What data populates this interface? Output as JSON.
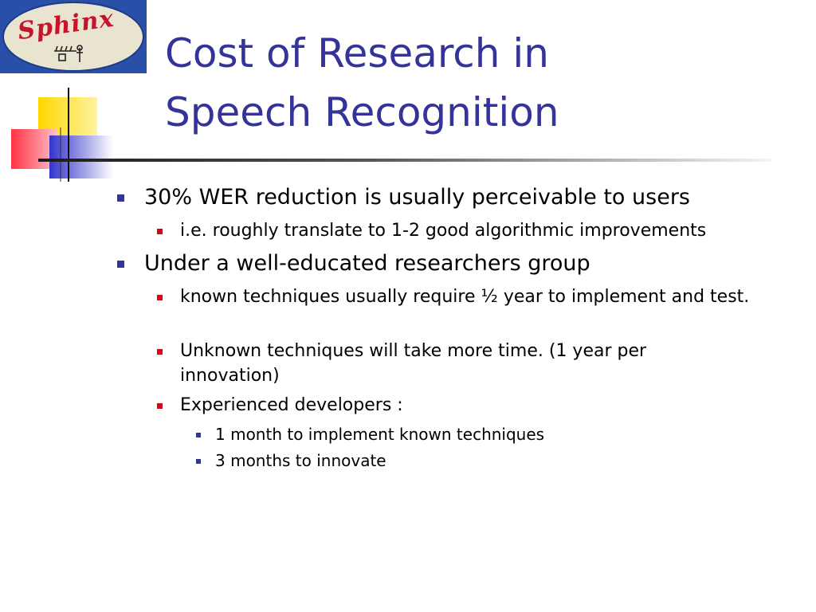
{
  "slide": {
    "logo_text": "Sphinx",
    "title_line1": "Cost of Research in",
    "title_line2": "Speech Recognition",
    "colors": {
      "title": "#333399",
      "bullet_level1": "#333399",
      "bullet_level2": "#e0001a",
      "bullet_level3": "#333399",
      "logo_bg": "#2a4fa8",
      "logo_text": "#c8142a"
    }
  },
  "bullets": [
    {
      "text": "30% WER reduction is usually perceivable to users",
      "children": [
        {
          "text": "i.e. roughly translate to 1-2 good algorithmic improvements"
        }
      ]
    },
    {
      "text": "Under a well-educated researchers group",
      "children": [
        {
          "text": "known techniques usually require ½ year to implement and test."
        },
        {
          "text": "Unknown techniques will take more time. (1 year per innovation)"
        },
        {
          "text": "Experienced developers :",
          "children": [
            {
              "text": "1 month to implement known techniques"
            },
            {
              "text": "3 months to innovate"
            }
          ]
        }
      ]
    }
  ]
}
